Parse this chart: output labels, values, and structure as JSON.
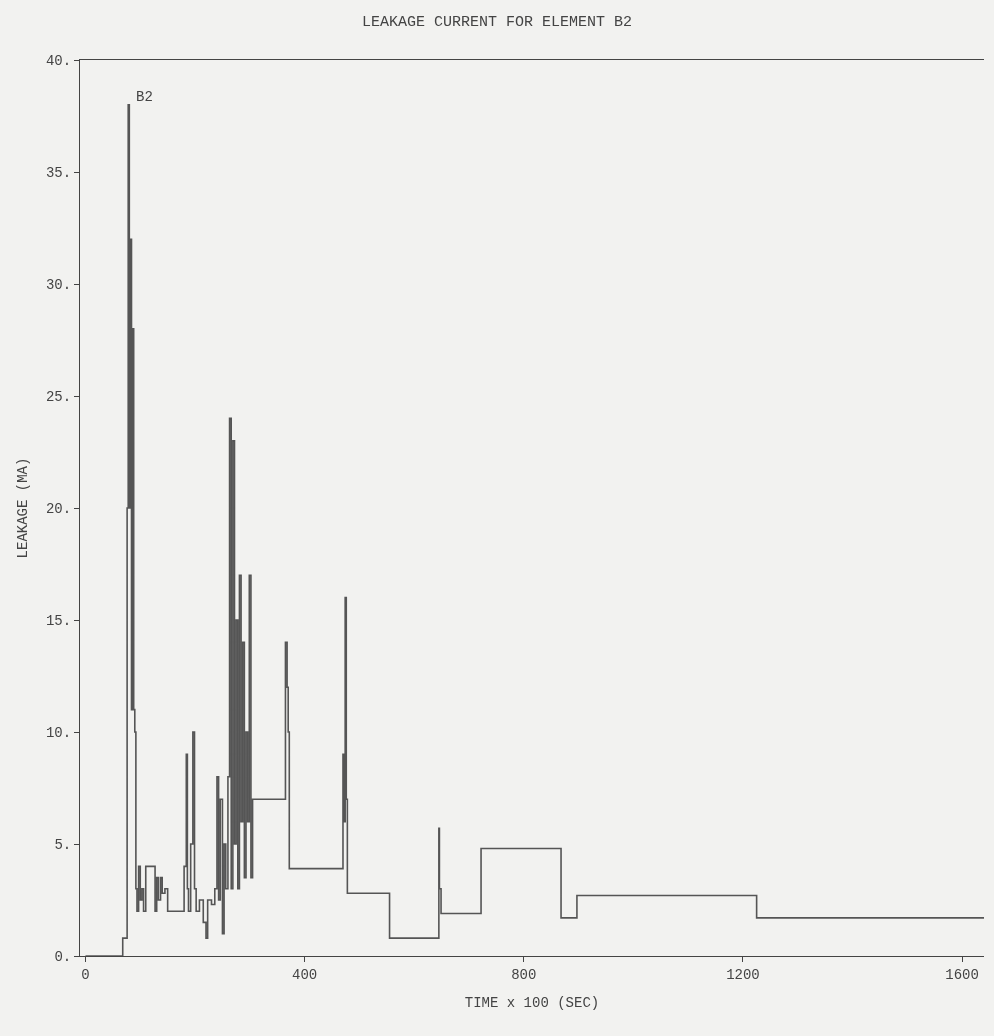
{
  "chart_data": {
    "type": "step",
    "title": "LEAKAGE CURRENT FOR ELEMENT B2",
    "xlabel": "TIME x 100 (SEC)",
    "ylabel": "LEAKAGE (MA)",
    "annotations": [
      "B2"
    ],
    "xlim": [
      -10,
      1640
    ],
    "xticks": [
      0,
      400,
      800,
      1200,
      1600
    ],
    "ylim": [
      0,
      40
    ],
    "yticks": [
      {
        "value": 0,
        "label": "0."
      },
      {
        "value": 5,
        "label": "5."
      },
      {
        "value": 10,
        "label": "10."
      },
      {
        "value": 15,
        "label": "15."
      },
      {
        "value": 20,
        "label": "20."
      },
      {
        "value": 25,
        "label": "25."
      },
      {
        "value": 30,
        "label": "30."
      },
      {
        "value": 35,
        "label": "35."
      },
      {
        "value": 40,
        "label": "40."
      }
    ],
    "grid": false,
    "series": [
      {
        "color": "#555555",
        "x": [
          0,
          68,
          76,
          78,
          80,
          82,
          84,
          86,
          88,
          90,
          92,
          94,
          97,
          100,
          103,
          106,
          110,
          125,
          127,
          130,
          133,
          137,
          140,
          145,
          150,
          175,
          180,
          184,
          186,
          188,
          192,
          196,
          199,
          202,
          208,
          215,
          220,
          223,
          230,
          236,
          240,
          243,
          246,
          250,
          253,
          256,
          260,
          263,
          266,
          269,
          272,
          275,
          278,
          281,
          284,
          287,
          290,
          293,
          296,
          299,
          302,
          305,
          365,
          368,
          370,
          372,
          470,
          472,
          474,
          476,
          478,
          480,
          555,
          560,
          645,
          646,
          649,
          652,
          722,
          725,
          868,
          872,
          897,
          900,
          1225,
          1230,
          1640
        ],
        "values": [
          0,
          0.8,
          20,
          38,
          20,
          32,
          11,
          28,
          11,
          10,
          3,
          2,
          4,
          2.5,
          3,
          2,
          4,
          4,
          2,
          3.5,
          2.5,
          3.5,
          2.8,
          3,
          2,
          2,
          4,
          9,
          3,
          2,
          5,
          10,
          3,
          2,
          2.5,
          1.5,
          0.8,
          2.5,
          2.3,
          3,
          8,
          2.5,
          7,
          1,
          5,
          3,
          8,
          24,
          3,
          23,
          5,
          15,
          3,
          17,
          6,
          14,
          3.5,
          10,
          6,
          17,
          3.5,
          7,
          14,
          12,
          10,
          3.9,
          9,
          6,
          16,
          7,
          2.8,
          2.8,
          0.8,
          0.8,
          5.7,
          3,
          1.9,
          1.9,
          4.8,
          4.8,
          1.7,
          1.7,
          2.7,
          2.7,
          1.7,
          1.7,
          1.7
        ]
      }
    ]
  }
}
